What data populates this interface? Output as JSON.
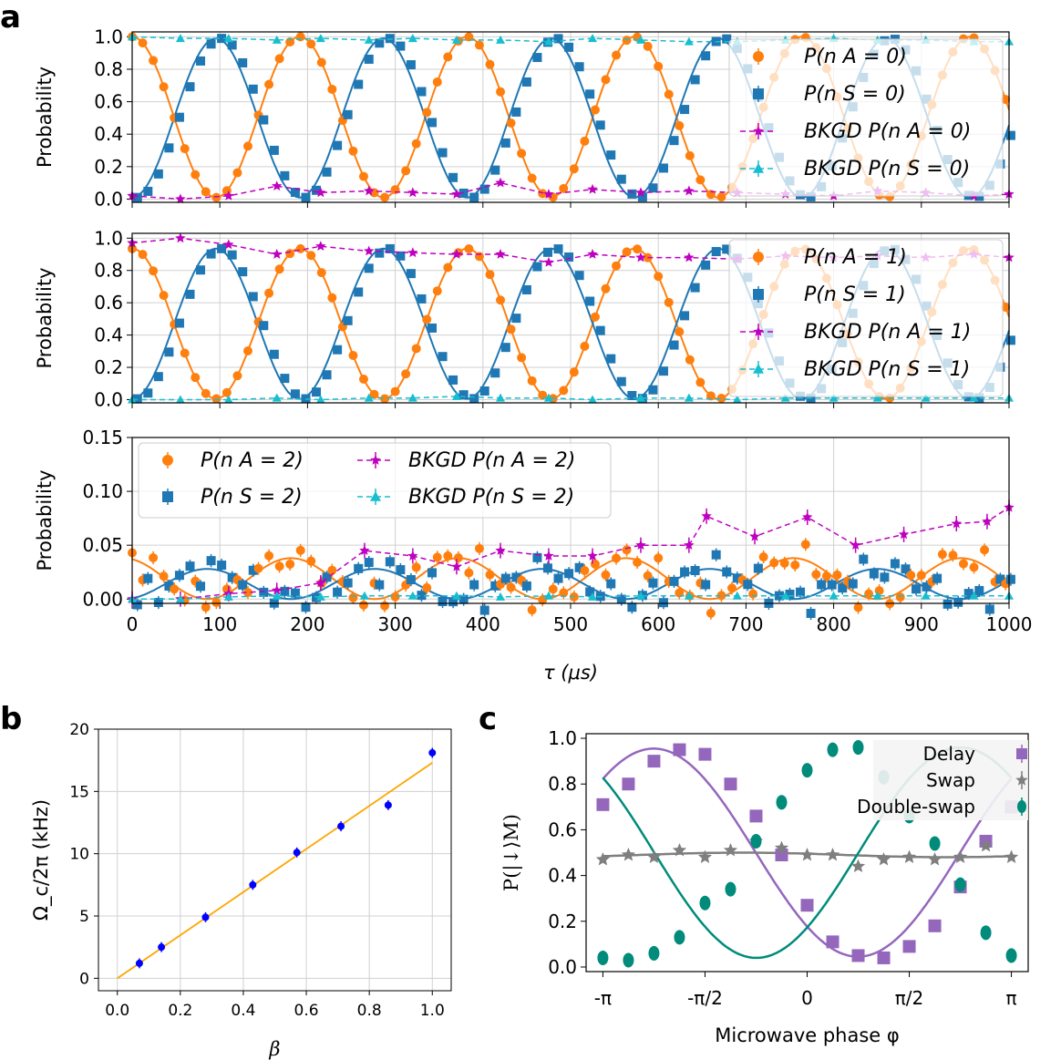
{
  "panel_letters": [
    "a",
    "b",
    "c"
  ],
  "colors": {
    "orange": "#ff7f0e",
    "blue": "#1f77b4",
    "magenta": "#bf00bf",
    "cyan": "#17becf",
    "purple": "#9467bd",
    "gray": "#7f7f7f",
    "teal": "#008b7a",
    "b_line": "#ffa500",
    "b_points": "#0000ff"
  },
  "chart_data": [
    {
      "id": "a1",
      "type": "line",
      "ylabel": "Probability",
      "xlim": [
        0,
        1000
      ],
      "ylim": [
        -0.02,
        1.03
      ],
      "yticks": [
        "0.0",
        "0.2",
        "0.4",
        "0.6",
        "0.8",
        "1.0"
      ],
      "grid": true,
      "legend": [
        "P(n_A = 0)",
        "P(n_S = 0)",
        "BKGD P(n_A = 0)",
        "BKGD P(n_S = 0)"
      ],
      "legend_position": "right",
      "series": [
        {
          "name": "P(n_A = 0)",
          "model": "1 - sin^2(pi*t/191)",
          "marker": "circle"
        },
        {
          "name": "P(n_S = 0)",
          "model": "sin^2(pi*t/191) (out of phase)",
          "marker": "square"
        },
        {
          "name": "BKGD P(n_A = 0)",
          "x": [
            0,
            55,
            110,
            165,
            215,
            270,
            320,
            370,
            420,
            475,
            525,
            580,
            635,
            690,
            745,
            800,
            850,
            905,
            960,
            1000
          ],
          "values": [
            0.02,
            0.0,
            0.02,
            0.08,
            0.04,
            0.05,
            0.04,
            0.03,
            0.1,
            0.03,
            0.06,
            0.04,
            0.05,
            0.04,
            0.03,
            0.02,
            0.05,
            0.04,
            0.02,
            0.03
          ]
        },
        {
          "name": "BKGD P(n_S = 0)",
          "x": [
            0,
            55,
            110,
            165,
            215,
            270,
            320,
            370,
            420,
            475,
            525,
            580,
            635,
            690,
            745,
            800,
            850,
            905,
            960,
            1000
          ],
          "values": [
            1.0,
            0.99,
            0.99,
            0.98,
            0.99,
            0.98,
            0.99,
            0.98,
            0.98,
            0.97,
            0.99,
            0.98,
            0.97,
            0.97,
            0.98,
            0.99,
            0.98,
            0.98,
            0.97,
            0.97
          ]
        }
      ]
    },
    {
      "id": "a2",
      "type": "line",
      "ylabel": "Probability",
      "xlim": [
        0,
        1000
      ],
      "ylim": [
        -0.02,
        1.03
      ],
      "yticks": [
        "0.0",
        "0.2",
        "0.4",
        "0.6",
        "0.8",
        "1.0"
      ],
      "grid": true,
      "legend": [
        "P(n_A = 1)",
        "P(n_S = 1)",
        "BKGD P(n_A = 1)",
        "BKGD P(n_S = 1)"
      ],
      "legend_position": "right",
      "series": [
        {
          "name": "P(n_A = 1)",
          "model": "0.92*cos^2(pi*t/191)",
          "marker": "circle"
        },
        {
          "name": "P(n_S = 1)",
          "model": "0.92*sin^2(pi*t/191)",
          "marker": "square"
        },
        {
          "name": "BKGD P(n_A = 1)",
          "x": [
            0,
            55,
            110,
            165,
            215,
            270,
            320,
            370,
            420,
            475,
            525,
            580,
            635,
            690,
            745,
            800,
            850,
            905,
            960,
            1000
          ],
          "values": [
            0.97,
            1.0,
            0.96,
            0.9,
            0.95,
            0.92,
            0.91,
            0.9,
            0.9,
            0.85,
            0.9,
            0.88,
            0.88,
            0.87,
            0.89,
            0.88,
            0.89,
            0.88,
            0.9,
            0.88
          ]
        },
        {
          "name": "BKGD P(n_S = 1)",
          "x": [
            0,
            55,
            110,
            165,
            215,
            270,
            320,
            370,
            420,
            475,
            525,
            580,
            635,
            690,
            745,
            800,
            850,
            905,
            960,
            1000
          ],
          "values": [
            0.0,
            0.0,
            0.0,
            0.01,
            0.0,
            0.01,
            0.01,
            0.02,
            0.01,
            0.01,
            0.0,
            0.01,
            0.01,
            0.0,
            0.01,
            0.01,
            0.01,
            0.01,
            0.01,
            0.01
          ]
        }
      ]
    },
    {
      "id": "a3",
      "type": "line",
      "ylabel": "Probability",
      "xlabel": "τ (μs)",
      "xlim": [
        0,
        1000
      ],
      "ylim": [
        -0.004,
        0.15
      ],
      "xticks": [
        "0",
        "100",
        "200",
        "300",
        "400",
        "500",
        "600",
        "700",
        "800",
        "900",
        "1000"
      ],
      "yticks": [
        "0.00",
        "0.05",
        "0.10",
        "0.15"
      ],
      "grid": true,
      "legend": [
        "P(n_A = 2)",
        "P(n_S = 2)",
        "BKGD P(n_A = 2)",
        "BKGD P(n_S = 2)"
      ],
      "legend_position": "top-left",
      "series": [
        {
          "name": "P(n_A = 2)",
          "model": "0.038*cos^2(pi*t/191)",
          "marker": "circle"
        },
        {
          "name": "P(n_S = 2)",
          "model": "0.028*sin^2(pi*t/191)",
          "marker": "square"
        },
        {
          "name": "BKGD P(n_A = 2)",
          "x": [
            0,
            55,
            110,
            165,
            215,
            265,
            320,
            370,
            420,
            475,
            525,
            580,
            635,
            655,
            710,
            770,
            825,
            880,
            940,
            975,
            1000
          ],
          "values": [
            0.0,
            0.0,
            0.005,
            0.008,
            0.015,
            0.045,
            0.04,
            0.03,
            0.045,
            0.04,
            0.04,
            0.05,
            0.05,
            0.077,
            0.058,
            0.076,
            0.05,
            0.06,
            0.07,
            0.072,
            0.085
          ]
        },
        {
          "name": "BKGD P(n_S = 2)",
          "x": [
            0,
            55,
            110,
            165,
            215,
            265,
            320,
            370,
            420,
            475,
            525,
            580,
            635,
            690,
            745,
            800,
            850,
            905,
            960,
            1000
          ],
          "values": [
            0.0,
            0.0,
            0.002,
            0.003,
            0.002,
            0.003,
            0.003,
            0.003,
            0.002,
            0.003,
            0.002,
            0.003,
            0.003,
            0.003,
            0.003,
            0.003,
            0.003,
            0.003,
            0.003,
            0.003
          ]
        }
      ]
    },
    {
      "id": "b",
      "type": "scatter",
      "xlabel": "β",
      "ylabel": "Ω_c/2π (kHz)",
      "xlim": [
        -0.06,
        1.06
      ],
      "ylim": [
        -1,
        20
      ],
      "xticks": [
        "0.0",
        "0.2",
        "0.4",
        "0.6",
        "0.8",
        "1.0"
      ],
      "yticks": [
        "0",
        "5",
        "10",
        "15",
        "20"
      ],
      "grid": true,
      "x": [
        0.07,
        0.14,
        0.28,
        0.43,
        0.57,
        0.71,
        0.86,
        1.0
      ],
      "values": [
        1.2,
        2.5,
        4.9,
        7.5,
        10.1,
        12.2,
        13.9,
        18.1
      ],
      "fit": {
        "x": [
          0.0,
          1.0
        ],
        "values": [
          0.0,
          17.3
        ]
      }
    },
    {
      "id": "c",
      "type": "scatter",
      "xlabel": "Microwave phase φ",
      "ylabel": "P(|↓⟩M)",
      "xlim": [
        -3.4,
        3.4
      ],
      "ylim": [
        -0.02,
        1.02
      ],
      "xticks": [
        "-π",
        "-π/2",
        "0",
        "π/2",
        "π"
      ],
      "yticks": [
        "0.0",
        "0.2",
        "0.4",
        "0.6",
        "0.8",
        "1.0"
      ],
      "grid": false,
      "legend": [
        "Delay",
        "Swap",
        "Double-swap"
      ],
      "legend_position": "top-right",
      "x": [
        -3.1416,
        -2.7489,
        -2.3562,
        -1.9635,
        -1.5708,
        -1.1781,
        -0.7854,
        -0.3927,
        0.0,
        0.3927,
        0.7854,
        1.1781,
        1.5708,
        1.9635,
        2.3562,
        2.7489,
        3.1416
      ],
      "series": [
        {
          "name": "Delay",
          "values": [
            0.71,
            0.8,
            0.9,
            0.95,
            0.93,
            0.8,
            0.66,
            0.49,
            0.27,
            0.11,
            0.05,
            0.04,
            0.09,
            0.18,
            0.35,
            0.55,
            0.7
          ]
        },
        {
          "name": "Swap",
          "values": [
            0.47,
            0.49,
            0.48,
            0.51,
            0.48,
            0.51,
            0.55,
            0.52,
            0.49,
            0.49,
            0.44,
            0.47,
            0.48,
            0.47,
            0.48,
            0.53,
            0.48
          ]
        },
        {
          "name": "Double-swap",
          "values": [
            0.04,
            0.03,
            0.06,
            0.13,
            0.28,
            0.34,
            0.55,
            0.72,
            0.86,
            0.95,
            0.96,
            0.83,
            0.66,
            0.54,
            0.36,
            0.15,
            0.05
          ]
        }
      ]
    }
  ]
}
